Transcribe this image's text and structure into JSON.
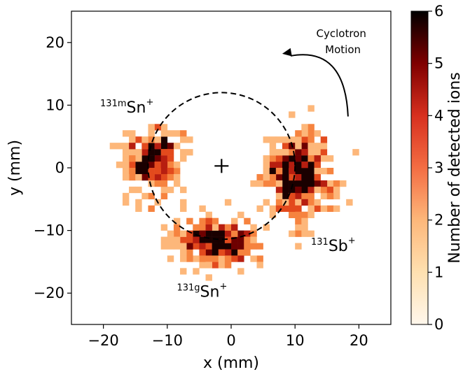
{
  "chart_data": {
    "type": "heatmap",
    "xlabel": "x (mm)",
    "ylabel": "y (mm)",
    "xlim": [
      -25,
      25
    ],
    "ylim": [
      -25,
      25
    ],
    "xticks": [
      -20,
      -10,
      0,
      10,
      20
    ],
    "xtick_labels": [
      "−20",
      "−10",
      "0",
      "10",
      "20"
    ],
    "yticks": [
      -20,
      -10,
      0,
      10,
      20
    ],
    "ytick_labels": [
      "−20",
      "−10",
      "0",
      "10",
      "20"
    ],
    "bin_size_mm": 1,
    "grid": false,
    "colorbar": {
      "label": "Number of detected ions",
      "range": [
        0,
        6
      ],
      "ticks": [
        0,
        1,
        2,
        3,
        4,
        5,
        6
      ],
      "colormap": [
        "#fff7ec",
        "#fdd49e",
        "#fc8d59",
        "#d7301f",
        "#7f0000",
        "#000000"
      ]
    },
    "clusters": [
      {
        "label": {
          "sup": "131m",
          "base": "Sn",
          "charge": "+"
        },
        "center": [
          -12.5,
          1.2
        ],
        "sigma": [
          2.3,
          2.6
        ],
        "counts": 230,
        "label_anchor": [
          -20.5,
          8.8
        ]
      },
      {
        "label": {
          "sup": "131",
          "base": "Sb",
          "charge": "+"
        },
        "center": [
          10.5,
          -1.5
        ],
        "sigma": [
          2.6,
          3.3
        ],
        "counts": 420,
        "label_anchor": [
          12.5,
          -13.3
        ]
      },
      {
        "label": {
          "sup": "131g",
          "base": "Sn",
          "charge": "+"
        },
        "center": [
          -2.2,
          -12.0
        ],
        "sigma": [
          3.0,
          1.9
        ],
        "counts": 300,
        "label_anchor": [
          -8.5,
          -20.6
        ]
      }
    ],
    "orbit": {
      "center": [
        -1.5,
        0.3
      ],
      "radius": 11.5,
      "style": "dashed"
    },
    "center_marker": {
      "position": [
        -1.5,
        0.3
      ],
      "symbol": "+"
    },
    "annotations": [
      {
        "text_lines": [
          "Cyclotron",
          "Motion"
        ],
        "position": [
          17.5,
          20.0
        ]
      }
    ],
    "arrow": {
      "from": [
        18.3,
        8.2
      ],
      "to": [
        8.0,
        18.2
      ],
      "curved": true
    }
  }
}
